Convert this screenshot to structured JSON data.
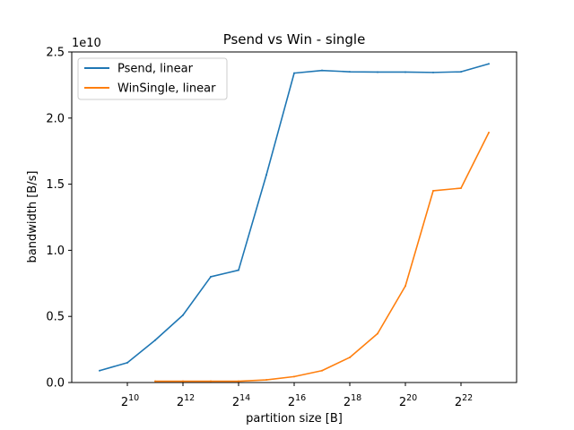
{
  "chart_data": {
    "type": "line",
    "title": "Psend vs Win - single",
    "xlabel": "partition size [B]",
    "ylabel": "bandwidth [B/s]",
    "y_offset_label": "1e10",
    "x_scale": "log2",
    "x_tick_base": "2",
    "x_tick_exponents": [
      "10",
      "12",
      "14",
      "16",
      "18",
      "20",
      "22"
    ],
    "y_ticks": [
      "0.0",
      "0.5",
      "1.0",
      "1.5",
      "2.0",
      "2.5"
    ],
    "y_tick_values": [
      0,
      5000000000,
      10000000000,
      15000000000,
      20000000000,
      25000000000
    ],
    "xlim": [
      256,
      16777216
    ],
    "ylim": [
      0,
      25000000000
    ],
    "grid": false,
    "legend_position": "top-left",
    "series": [
      {
        "name": "Psend, linear",
        "color": "#1f77b4",
        "points": [
          [
            512,
            900000000
          ],
          [
            1024,
            1500000000
          ],
          [
            2048,
            3200000000
          ],
          [
            4096,
            5100000000
          ],
          [
            8192,
            8000000000
          ],
          [
            16384,
            8500000000
          ],
          [
            32768,
            15700000000
          ],
          [
            65536,
            23400000000
          ],
          [
            131072,
            23600000000
          ],
          [
            262144,
            23500000000
          ],
          [
            524288,
            23480000000
          ],
          [
            1048576,
            23480000000
          ],
          [
            2097152,
            23450000000
          ],
          [
            4194304,
            23500000000
          ],
          [
            8388608,
            24100000000
          ]
        ]
      },
      {
        "name": "WinSingle, linear",
        "color": "#ff7f0e",
        "points": [
          [
            2048,
            100000000
          ],
          [
            4096,
            100000000
          ],
          [
            8192,
            100000000
          ],
          [
            16384,
            100000000
          ],
          [
            32768,
            200000000
          ],
          [
            65536,
            450000000
          ],
          [
            131072,
            900000000
          ],
          [
            262144,
            1900000000
          ],
          [
            524288,
            3700000000
          ],
          [
            1048576,
            7300000000
          ],
          [
            2097152,
            14500000000
          ],
          [
            4194304,
            14700000000
          ],
          [
            8388608,
            18900000000
          ]
        ]
      }
    ]
  }
}
